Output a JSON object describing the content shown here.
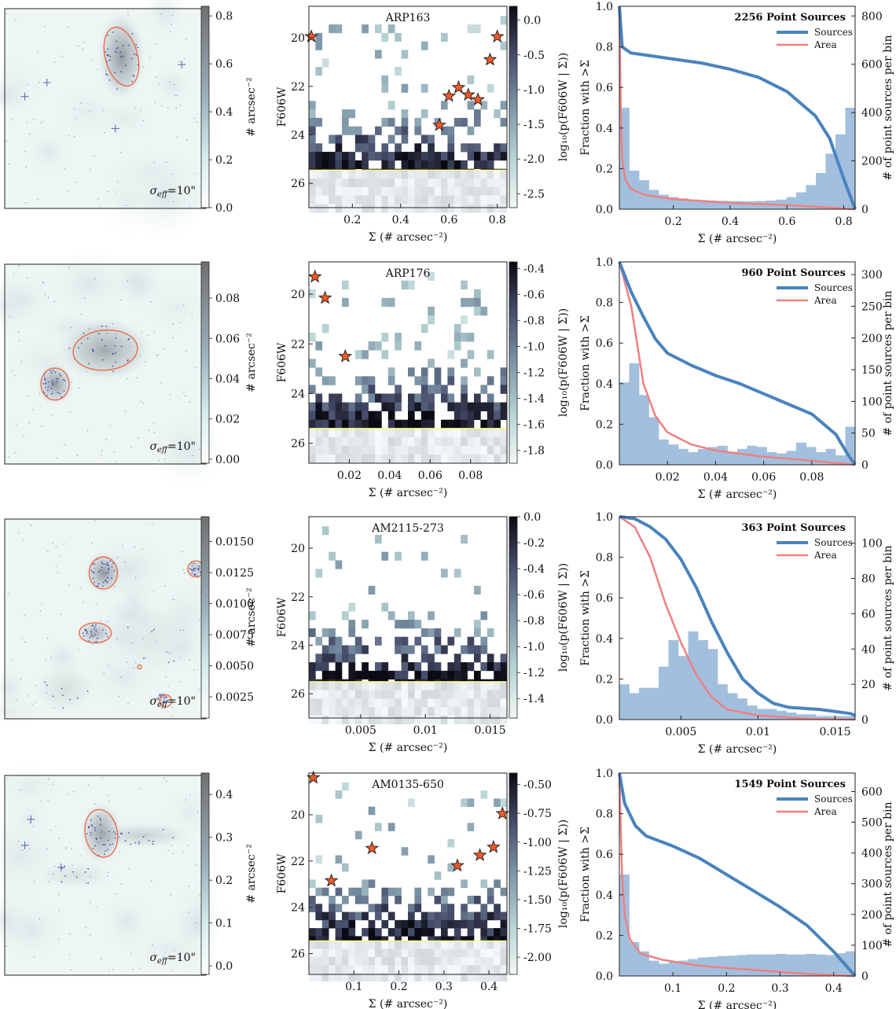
{
  "figure": {
    "sigma_label_prefix": "σ",
    "sigma_label_sub": "eff",
    "sigma_label_value": "=10\"",
    "density_colorbar_label": "# arcsec⁻²",
    "cmd_ylabel": "F606W",
    "cmd_colorbar_label": "log₁₀(p(F606W | Σ))",
    "xlabel": "Σ (# arcsec⁻²)",
    "frac_ylabel": "Fraction with >Σ",
    "hist_ylabel": "# of point sources per bin",
    "legend_sources": "Sources",
    "legend_area": "Area"
  },
  "colors": {
    "sources": "#4a83bd",
    "area": "#ee8080",
    "hist": "#9dbcdc",
    "contour": "#ee6a45",
    "star": "#f05a28",
    "limit_line": "#ffff66"
  },
  "chart_data": [
    {
      "type": "panel-row",
      "name": "ARP163",
      "point_source_count_label": "2256 Point Sources",
      "density_map": {
        "cb_ticks": [
          "0.0",
          "0.2",
          "0.4",
          "0.6",
          "0.8"
        ],
        "cb_range": [
          0,
          0.84
        ],
        "blobs": [
          [
            0.58,
            0.24,
            0.09,
            0.17,
            0.6
          ]
        ],
        "contours": [
          [
            0.58,
            0.24,
            0.08,
            0.15,
            -15
          ]
        ],
        "stars": [
          [
            0.1,
            0.44
          ],
          [
            0.21,
            0.37
          ],
          [
            0.55,
            0.6
          ],
          [
            0.88,
            0.28
          ]
        ]
      },
      "cmd": {
        "x_ticks": [
          0.2,
          0.4,
          0.6,
          0.8
        ],
        "x_range": [
          0.02,
          0.84
        ],
        "y_ticks": [
          20,
          22,
          24,
          26
        ],
        "y_range": [
          18.7,
          27
        ],
        "cb_ticks": [
          "0.0",
          "-0.5",
          "-1.0",
          "-1.5",
          "-2.0",
          "-2.5"
        ],
        "cb_range": [
          -2.7,
          0.2
        ],
        "completeness_limit": 25.45,
        "stars": [
          [
            0.03,
            19.95
          ],
          [
            0.8,
            19.95
          ],
          [
            0.77,
            20.9
          ],
          [
            0.64,
            22.05
          ],
          [
            0.6,
            22.4
          ],
          [
            0.68,
            22.35
          ],
          [
            0.72,
            22.55
          ],
          [
            0.56,
            23.6
          ]
        ],
        "sparse_bins": 30,
        "sparse_density": 0.35
      },
      "frac": {
        "x_ticks": [
          0.2,
          0.4,
          0.6,
          0.8
        ],
        "x_range": [
          0.01,
          0.84
        ],
        "hist_ticks": [
          0,
          200,
          400,
          600,
          800
        ],
        "hist_range": [
          0,
          840
        ],
        "hist": [
          420,
          160,
          120,
          80,
          60,
          50,
          45,
          40,
          38,
          36,
          35,
          34,
          33,
          33,
          34,
          36,
          40,
          50,
          70,
          100,
          150,
          230,
          310,
          420
        ],
        "sources": [
          [
            0.01,
            1.0
          ],
          [
            0.02,
            0.8
          ],
          [
            0.05,
            0.77
          ],
          [
            0.1,
            0.76
          ],
          [
            0.2,
            0.74
          ],
          [
            0.3,
            0.72
          ],
          [
            0.4,
            0.69
          ],
          [
            0.5,
            0.65
          ],
          [
            0.6,
            0.58
          ],
          [
            0.7,
            0.46
          ],
          [
            0.75,
            0.35
          ],
          [
            0.8,
            0.15
          ],
          [
            0.84,
            0.0
          ]
        ],
        "area": [
          [
            0.01,
            1.0
          ],
          [
            0.015,
            0.5
          ],
          [
            0.02,
            0.25
          ],
          [
            0.03,
            0.15
          ],
          [
            0.05,
            0.1
          ],
          [
            0.1,
            0.07
          ],
          [
            0.2,
            0.05
          ],
          [
            0.4,
            0.03
          ],
          [
            0.6,
            0.02
          ],
          [
            0.84,
            0.0
          ]
        ]
      }
    },
    {
      "type": "panel-row",
      "name": "ARP176",
      "point_source_count_label": "960 Point Sources",
      "density_map": {
        "cb_ticks": [
          "0.00",
          "0.02",
          "0.04",
          "0.06",
          "0.08"
        ],
        "cb_range": [
          -0.002,
          0.098
        ],
        "blobs": [
          [
            0.5,
            0.43,
            0.18,
            0.12,
            0.5
          ],
          [
            0.25,
            0.6,
            0.07,
            0.08,
            0.6
          ]
        ],
        "contours": [
          [
            0.5,
            0.43,
            0.16,
            0.1,
            -5
          ],
          [
            0.25,
            0.6,
            0.07,
            0.08,
            0
          ]
        ],
        "stars": []
      },
      "cmd": {
        "x_ticks": [
          0.02,
          0.04,
          0.06,
          0.08
        ],
        "x_range": [
          0.0,
          0.098
        ],
        "y_ticks": [
          20,
          22,
          24,
          26
        ],
        "y_range": [
          18.7,
          26.8
        ],
        "cb_ticks": [
          "-0.4",
          "-0.6",
          "-0.8",
          "-1.0",
          "-1.2",
          "-1.4",
          "-1.6",
          "-1.8"
        ],
        "cb_range": [
          -1.9,
          -0.35
        ],
        "completeness_limit": 25.4,
        "stars": [
          [
            0.003,
            19.3
          ],
          [
            0.008,
            20.15
          ],
          [
            0.018,
            22.5
          ]
        ],
        "sparse_bins": 35,
        "sparse_density": 0.4
      },
      "frac": {
        "x_ticks": [
          0.02,
          0.04,
          0.06,
          0.08
        ],
        "x_range": [
          0.0,
          0.098
        ],
        "hist_ticks": [
          0,
          50,
          100,
          150,
          200,
          250,
          300
        ],
        "hist_range": [
          0,
          320
        ],
        "hist": [
          130,
          160,
          110,
          75,
          40,
          32,
          25,
          20,
          25,
          28,
          30,
          20,
          25,
          30,
          28,
          20,
          18,
          22,
          35,
          28,
          20,
          25,
          15,
          60
        ],
        "sources": [
          [
            0.0,
            1.0
          ],
          [
            0.005,
            0.85
          ],
          [
            0.01,
            0.73
          ],
          [
            0.015,
            0.62
          ],
          [
            0.02,
            0.55
          ],
          [
            0.03,
            0.49
          ],
          [
            0.04,
            0.44
          ],
          [
            0.05,
            0.4
          ],
          [
            0.06,
            0.35
          ],
          [
            0.07,
            0.3
          ],
          [
            0.08,
            0.25
          ],
          [
            0.09,
            0.15
          ],
          [
            0.095,
            0.05
          ],
          [
            0.098,
            0.0
          ]
        ],
        "area": [
          [
            0.0,
            1.0
          ],
          [
            0.005,
            0.78
          ],
          [
            0.01,
            0.4
          ],
          [
            0.015,
            0.24
          ],
          [
            0.02,
            0.16
          ],
          [
            0.03,
            0.1
          ],
          [
            0.04,
            0.07
          ],
          [
            0.06,
            0.04
          ],
          [
            0.08,
            0.02
          ],
          [
            0.098,
            0.0
          ]
        ]
      }
    },
    {
      "type": "panel-row",
      "name": "AM2115-273",
      "point_source_count_label": "363 Point Sources",
      "density_map": {
        "cb_ticks": [
          "0.0025",
          "0.0050",
          "0.0075",
          "0.0100",
          "0.0125",
          "0.0150"
        ],
        "cb_range": [
          0.0008,
          0.017
        ],
        "blobs": [
          [
            0.49,
            0.27,
            0.07,
            0.08,
            0.6
          ],
          [
            0.45,
            0.57,
            0.07,
            0.05,
            0.45
          ],
          [
            0.95,
            0.25,
            0.04,
            0.04,
            0.35
          ],
          [
            0.79,
            0.9,
            0.03,
            0.03,
            0.3
          ],
          [
            0.3,
            0.85,
            0.12,
            0.1,
            0.15
          ],
          [
            0.75,
            0.6,
            0.15,
            0.15,
            0.1
          ]
        ],
        "contours": [
          [
            0.49,
            0.27,
            0.07,
            0.08,
            0
          ],
          [
            0.45,
            0.57,
            0.08,
            0.05,
            0
          ],
          [
            0.95,
            0.25,
            0.04,
            0.04,
            0
          ],
          [
            0.8,
            0.91,
            0.03,
            0.03,
            0
          ],
          [
            0.67,
            0.74,
            0.01,
            0.01,
            0
          ]
        ],
        "stars": []
      },
      "cmd": {
        "x_ticks": [
          0.005,
          0.01,
          0.015
        ],
        "x_range": [
          0.001,
          0.0163
        ],
        "y_ticks": [
          20,
          22,
          24,
          26
        ],
        "y_range": [
          18.7,
          27
        ],
        "cb_ticks": [
          "0.0",
          "-0.2",
          "-0.4",
          "-0.6",
          "-0.8",
          "-1.0",
          "-1.2",
          "-1.4"
        ],
        "cb_range": [
          -1.55,
          0.0
        ],
        "completeness_limit": 25.5,
        "stars": [],
        "sparse_bins": 45,
        "sparse_density": 0.22
      },
      "frac": {
        "x_ticks": [
          0.005,
          0.01,
          0.015
        ],
        "x_range": [
          0.001,
          0.0163
        ],
        "hist_ticks": [
          0,
          20,
          40,
          60,
          80,
          100
        ],
        "hist_range": [
          0,
          115
        ],
        "hist": [
          20,
          15,
          18,
          18,
          30,
          45,
          36,
          50,
          45,
          40,
          20,
          15,
          12,
          8,
          6,
          6,
          5,
          4,
          3,
          3,
          2,
          2,
          2,
          2
        ],
        "sources": [
          [
            0.001,
            1.0
          ],
          [
            0.002,
            0.99
          ],
          [
            0.003,
            0.95
          ],
          [
            0.004,
            0.89
          ],
          [
            0.005,
            0.79
          ],
          [
            0.006,
            0.65
          ],
          [
            0.007,
            0.48
          ],
          [
            0.008,
            0.33
          ],
          [
            0.009,
            0.2
          ],
          [
            0.01,
            0.13
          ],
          [
            0.011,
            0.08
          ],
          [
            0.012,
            0.06
          ],
          [
            0.014,
            0.05
          ],
          [
            0.016,
            0.03
          ],
          [
            0.0163,
            0.02
          ]
        ],
        "area": [
          [
            0.001,
            1.0
          ],
          [
            0.002,
            0.95
          ],
          [
            0.003,
            0.8
          ],
          [
            0.004,
            0.57
          ],
          [
            0.005,
            0.38
          ],
          [
            0.006,
            0.22
          ],
          [
            0.007,
            0.11
          ],
          [
            0.008,
            0.05
          ],
          [
            0.01,
            0.02
          ],
          [
            0.013,
            0.005
          ],
          [
            0.0163,
            0.0
          ]
        ]
      }
    },
    {
      "type": "panel-row",
      "name": "AM0135-650",
      "point_source_count_label": "1549 Point Sources",
      "density_map": {
        "cb_ticks": [
          "0.0",
          "0.1",
          "0.2",
          "0.3",
          "0.4"
        ],
        "cb_range": [
          -0.02,
          0.45
        ],
        "blobs": [
          [
            0.48,
            0.29,
            0.08,
            0.12,
            0.55
          ],
          [
            0.68,
            0.3,
            0.2,
            0.05,
            0.25
          ],
          [
            0.35,
            0.5,
            0.15,
            0.05,
            0.15
          ]
        ],
        "contours": [
          [
            0.48,
            0.29,
            0.08,
            0.12,
            -10
          ]
        ],
        "stars": [
          [
            0.13,
            0.22
          ],
          [
            0.1,
            0.35
          ],
          [
            0.28,
            0.46
          ]
        ]
      },
      "cmd": {
        "x_ticks": [
          0.1,
          0.2,
          0.3,
          0.4
        ],
        "x_range": [
          0.0,
          0.44
        ],
        "y_ticks": [
          20,
          22,
          24,
          26
        ],
        "y_range": [
          18.2,
          26.9
        ],
        "cb_ticks": [
          "-0.50",
          "-0.75",
          "-1.00",
          "-1.25",
          "-1.50",
          "-1.75",
          "-2.00"
        ],
        "cb_range": [
          -2.15,
          -0.4
        ],
        "completeness_limit": 25.45,
        "stars": [
          [
            0.01,
            18.4
          ],
          [
            0.43,
            19.95
          ],
          [
            0.14,
            21.45
          ],
          [
            0.41,
            21.4
          ],
          [
            0.38,
            21.75
          ],
          [
            0.33,
            22.2
          ],
          [
            0.05,
            22.85
          ]
        ],
        "sparse_bins": 32,
        "sparse_density": 0.3
      },
      "frac": {
        "x_ticks": [
          0.1,
          0.2,
          0.3,
          0.4
        ],
        "x_range": [
          0.0,
          0.44
        ],
        "hist_ticks": [
          0,
          100,
          200,
          300,
          400,
          500,
          600
        ],
        "hist_range": [
          0,
          660
        ],
        "hist": [
          330,
          110,
          80,
          50,
          40,
          45,
          50,
          55,
          60,
          62,
          65,
          66,
          68,
          70,
          70,
          70,
          72,
          70,
          70,
          72,
          70,
          68,
          74,
          80
        ],
        "sources": [
          [
            0.0,
            1.0
          ],
          [
            0.01,
            0.85
          ],
          [
            0.03,
            0.74
          ],
          [
            0.05,
            0.69
          ],
          [
            0.1,
            0.64
          ],
          [
            0.15,
            0.58
          ],
          [
            0.2,
            0.5
          ],
          [
            0.25,
            0.42
          ],
          [
            0.3,
            0.34
          ],
          [
            0.35,
            0.25
          ],
          [
            0.4,
            0.12
          ],
          [
            0.44,
            0.0
          ]
        ],
        "area": [
          [
            0.0,
            1.0
          ],
          [
            0.005,
            0.5
          ],
          [
            0.01,
            0.3
          ],
          [
            0.02,
            0.18
          ],
          [
            0.04,
            0.11
          ],
          [
            0.08,
            0.08
          ],
          [
            0.15,
            0.05
          ],
          [
            0.25,
            0.03
          ],
          [
            0.35,
            0.01
          ],
          [
            0.44,
            0.0
          ]
        ]
      }
    }
  ]
}
